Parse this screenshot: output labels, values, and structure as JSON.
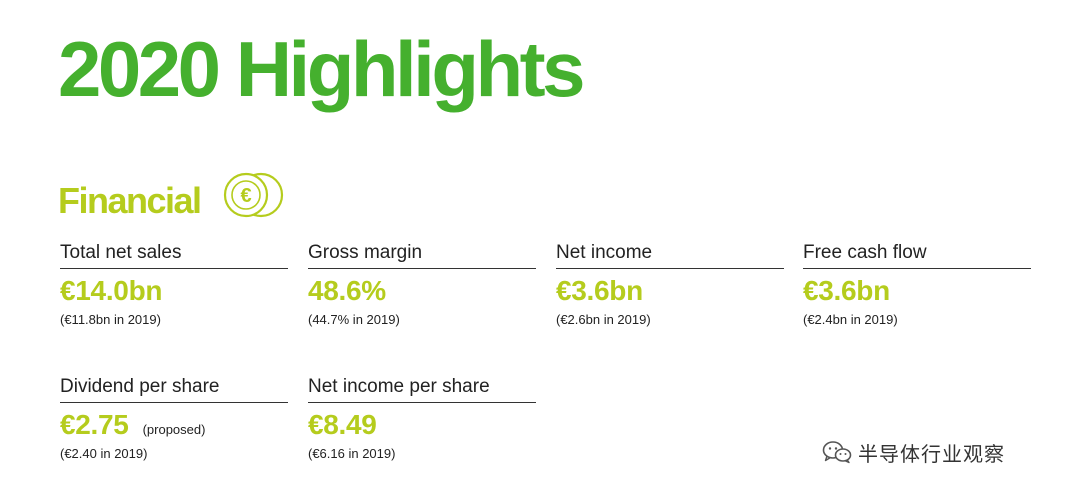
{
  "page": {
    "title": "2020 Highlights"
  },
  "section": {
    "title": "Financial",
    "icon": "euro-coins-icon"
  },
  "metrics": [
    {
      "label": "Total net sales",
      "value": "€14.0bn",
      "note": "",
      "compare": "(€11.8bn in 2019)"
    },
    {
      "label": "Gross margin",
      "value": "48.6%",
      "note": "",
      "compare": "(44.7% in 2019)"
    },
    {
      "label": "Net income",
      "value": "€3.6bn",
      "note": "",
      "compare": "(€2.6bn in 2019)"
    },
    {
      "label": "Free cash flow",
      "value": "€3.6bn",
      "note": "",
      "compare": "(€2.4bn in 2019)"
    },
    {
      "label": "Dividend per share",
      "value": "€2.75",
      "note": "(proposed)",
      "compare": "(€2.40 in 2019)"
    },
    {
      "label": "Net income per share",
      "value": "€8.49",
      "note": "",
      "compare": "(€6.16 in 2019)"
    }
  ],
  "watermark": {
    "text": "半导体行业观察",
    "icon": "wechat-icon"
  },
  "colors": {
    "title_green": "#45b02e",
    "accent_lime": "#b5cc1d",
    "text_dark": "#222222"
  }
}
